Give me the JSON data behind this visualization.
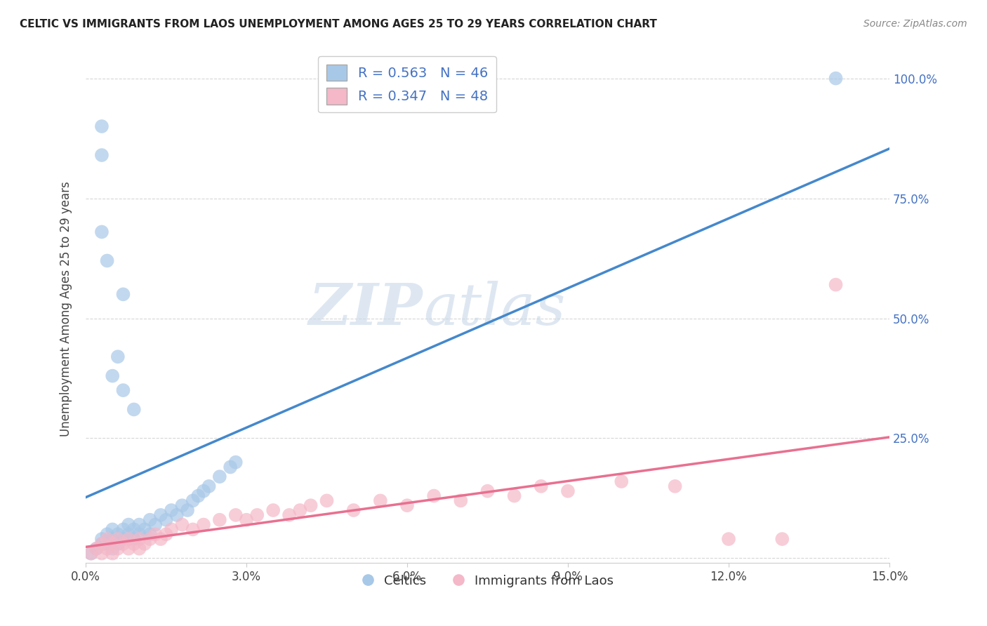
{
  "title": "CELTIC VS IMMIGRANTS FROM LAOS UNEMPLOYMENT AMONG AGES 25 TO 29 YEARS CORRELATION CHART",
  "source": "Source: ZipAtlas.com",
  "ylabel": "Unemployment Among Ages 25 to 29 years",
  "xlim": [
    0,
    0.15
  ],
  "ylim": [
    -0.01,
    1.05
  ],
  "xticks": [
    0.0,
    0.03,
    0.06,
    0.09,
    0.12,
    0.15
  ],
  "xtick_labels": [
    "0.0%",
    "3.0%",
    "6.0%",
    "9.0%",
    "12.0%",
    "15.0%"
  ],
  "yticks": [
    0.0,
    0.25,
    0.5,
    0.75,
    1.0
  ],
  "ytick_labels_right": [
    "",
    "25.0%",
    "50.0%",
    "75.0%",
    "100.0%"
  ],
  "blue_R": 0.563,
  "blue_N": 46,
  "pink_R": 0.347,
  "pink_N": 48,
  "blue_color": "#a8c8e8",
  "pink_color": "#f4b8c8",
  "blue_line_color": "#4488cc",
  "pink_line_color": "#e87090",
  "label_blue": "Celtics",
  "label_pink": "Immigrants from Laos",
  "watermark_zip": "ZIP",
  "watermark_atlas": "atlas",
  "celtics_x": [
    0.001,
    0.002,
    0.003,
    0.003,
    0.004,
    0.004,
    0.005,
    0.005,
    0.005,
    0.006,
    0.006,
    0.007,
    0.007,
    0.008,
    0.008,
    0.009,
    0.009,
    0.01,
    0.01,
    0.011,
    0.012,
    0.012,
    0.013,
    0.014,
    0.015,
    0.016,
    0.017,
    0.018,
    0.019,
    0.02,
    0.021,
    0.022,
    0.023,
    0.025,
    0.027,
    0.028,
    0.009,
    0.007,
    0.004,
    0.003,
    0.005,
    0.006,
    0.007,
    0.003,
    0.003,
    0.14
  ],
  "celtics_y": [
    0.01,
    0.02,
    0.03,
    0.04,
    0.03,
    0.05,
    0.02,
    0.04,
    0.06,
    0.03,
    0.05,
    0.04,
    0.06,
    0.05,
    0.07,
    0.04,
    0.06,
    0.05,
    0.07,
    0.06,
    0.05,
    0.08,
    0.07,
    0.09,
    0.08,
    0.1,
    0.09,
    0.11,
    0.1,
    0.12,
    0.13,
    0.14,
    0.15,
    0.17,
    0.19,
    0.2,
    0.31,
    0.35,
    0.62,
    0.68,
    0.38,
    0.42,
    0.55,
    0.84,
    0.9,
    1.0
  ],
  "laos_x": [
    0.001,
    0.002,
    0.003,
    0.003,
    0.004,
    0.004,
    0.005,
    0.005,
    0.006,
    0.006,
    0.007,
    0.008,
    0.008,
    0.009,
    0.01,
    0.01,
    0.011,
    0.012,
    0.013,
    0.014,
    0.015,
    0.016,
    0.018,
    0.02,
    0.022,
    0.025,
    0.028,
    0.03,
    0.032,
    0.035,
    0.038,
    0.04,
    0.042,
    0.045,
    0.05,
    0.055,
    0.06,
    0.065,
    0.07,
    0.075,
    0.08,
    0.085,
    0.09,
    0.1,
    0.11,
    0.12,
    0.13,
    0.14
  ],
  "laos_y": [
    0.01,
    0.02,
    0.01,
    0.03,
    0.02,
    0.04,
    0.01,
    0.03,
    0.02,
    0.04,
    0.03,
    0.02,
    0.04,
    0.03,
    0.02,
    0.04,
    0.03,
    0.04,
    0.05,
    0.04,
    0.05,
    0.06,
    0.07,
    0.06,
    0.07,
    0.08,
    0.09,
    0.08,
    0.09,
    0.1,
    0.09,
    0.1,
    0.11,
    0.12,
    0.1,
    0.12,
    0.11,
    0.13,
    0.12,
    0.14,
    0.13,
    0.15,
    0.14,
    0.16,
    0.15,
    0.04,
    0.04,
    0.57
  ]
}
